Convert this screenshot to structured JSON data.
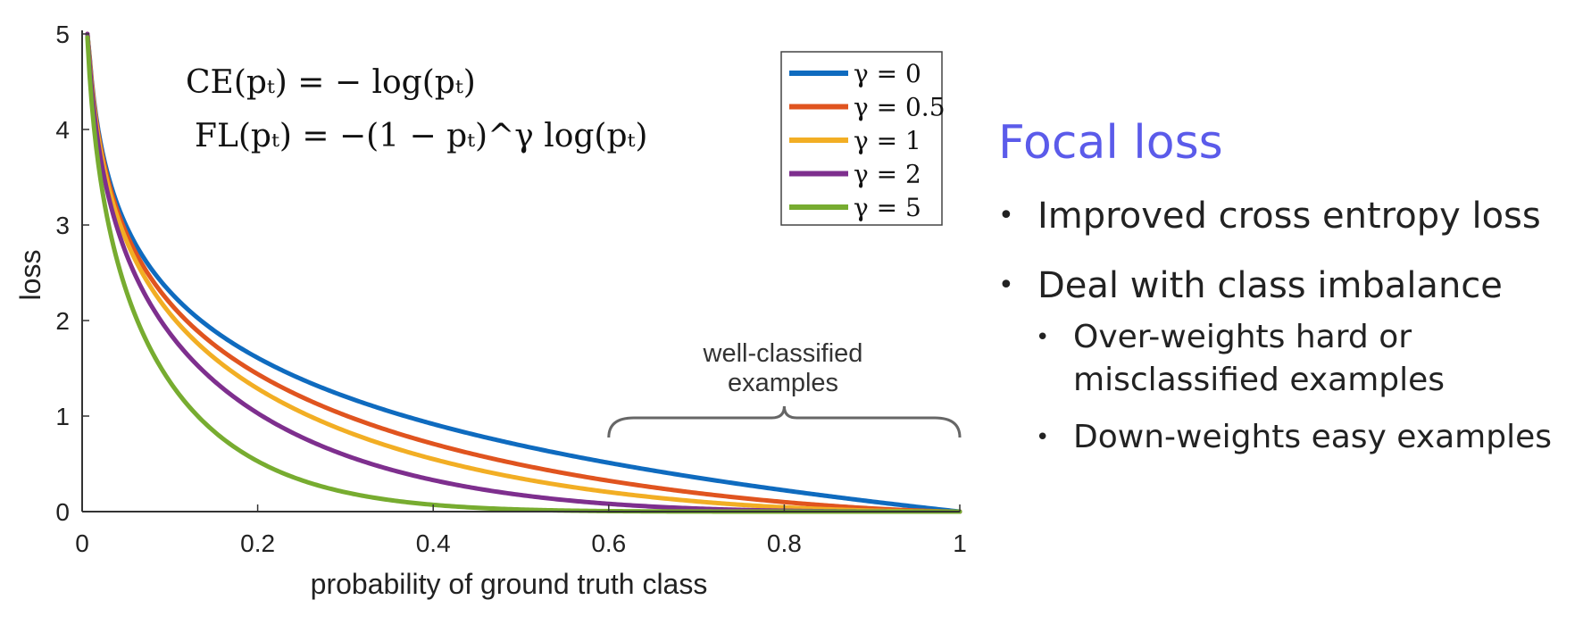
{
  "chart_data": {
    "type": "line",
    "xlabel": "probability of ground truth class",
    "ylabel": "loss",
    "xlim": [
      0,
      1
    ],
    "ylim": [
      0,
      5
    ],
    "xticks": [
      "0",
      "0.2",
      "0.4",
      "0.6",
      "0.8",
      "1"
    ],
    "yticks": [
      "0",
      "1",
      "2",
      "3",
      "4",
      "5"
    ],
    "grid": false,
    "legend_position": "top-right",
    "formulas": {
      "ce": "CE(pₜ) = − log(pₜ)",
      "fl": "FL(pₜ) = −(1 − pₜ)^γ log(pₜ)"
    },
    "annotation": {
      "line1": "well-classified",
      "line2": "examples",
      "x_range": [
        0.6,
        1.0
      ]
    },
    "series": [
      {
        "name": "γ = 0",
        "gamma": 0,
        "color": "#0f6bbf",
        "x": [
          0.05,
          0.1,
          0.2,
          0.4,
          0.6,
          0.8,
          1.0
        ],
        "y": [
          3.0,
          2.3,
          1.61,
          0.92,
          0.51,
          0.22,
          0
        ]
      },
      {
        "name": "γ = 0.5",
        "gamma": 0.5,
        "color": "#e0541f",
        "x": [
          0.05,
          0.1,
          0.2,
          0.4,
          0.6,
          0.8,
          1.0
        ],
        "y": [
          2.92,
          2.18,
          1.44,
          0.71,
          0.32,
          0.1,
          0
        ]
      },
      {
        "name": "γ = 1",
        "gamma": 1,
        "color": "#f2ae24",
        "x": [
          0.05,
          0.1,
          0.2,
          0.4,
          0.6,
          0.8,
          1.0
        ],
        "y": [
          2.85,
          2.07,
          1.29,
          0.55,
          0.2,
          0.04,
          0
        ]
      },
      {
        "name": "γ = 2",
        "gamma": 2,
        "color": "#7e2f8e",
        "x": [
          0.05,
          0.1,
          0.2,
          0.4,
          0.6,
          0.8,
          1.0
        ],
        "y": [
          2.7,
          1.87,
          1.03,
          0.33,
          0.08,
          0.01,
          0
        ]
      },
      {
        "name": "γ = 5",
        "gamma": 5,
        "color": "#77ac30",
        "x": [
          0.05,
          0.1,
          0.2,
          0.4,
          0.6,
          0.8,
          1.0
        ],
        "y": [
          2.32,
          1.36,
          0.53,
          0.07,
          0.01,
          0,
          0
        ]
      }
    ]
  },
  "side": {
    "title": "Focal loss",
    "bullets": [
      {
        "text": "Improved cross entropy loss"
      },
      {
        "text": "Deal with class imbalance",
        "sub": [
          "Over-weights hard or misclassified examples",
          "Down-weights easy examples"
        ]
      }
    ]
  }
}
